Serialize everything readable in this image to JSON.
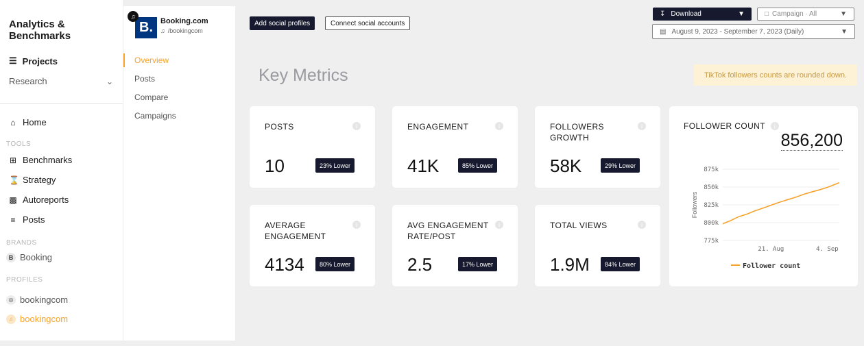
{
  "sidebar": {
    "app_title_line1": "Analytics &",
    "app_title_line2": "Benchmarks",
    "projects_label": "Projects",
    "research_label": "Research",
    "home_label": "Home",
    "tools_label": "TOOLS",
    "tools": [
      {
        "label": "Benchmarks",
        "icon": "grid-icon"
      },
      {
        "label": "Strategy",
        "icon": "hourglass-icon"
      },
      {
        "label": "Autoreports",
        "icon": "bar-chart-icon"
      },
      {
        "label": "Posts",
        "icon": "list-icon"
      }
    ],
    "brands_label": "BRANDS",
    "brands": [
      {
        "label": "Booking",
        "badge": "B"
      }
    ],
    "profiles_label": "PROFILES",
    "profiles": [
      {
        "label": "bookingcom",
        "icon": "instagram-icon"
      },
      {
        "label": "bookingcom",
        "icon": "tiktok-icon",
        "active": true
      }
    ]
  },
  "subpanel": {
    "profile_name": "Booking.com",
    "profile_handle": "/bookingcom",
    "logo_text": "B.",
    "nav": [
      "Overview",
      "Posts",
      "Compare",
      "Campaigns"
    ]
  },
  "toolbar": {
    "add_profiles": "Add social profiles",
    "connect_accounts": "Connect social accounts",
    "download": "Download",
    "campaign": "Campaign · All",
    "date_range": "August 9, 2023 - September 7, 2023 (Daily)"
  },
  "main": {
    "heading": "Key Metrics",
    "notice": "TikTok followers counts are rounded down."
  },
  "metrics": [
    {
      "title_line1": "POSTS",
      "title_line2": "",
      "value": "10",
      "badge": "23% Lower"
    },
    {
      "title_line1": "ENGAGEMENT",
      "title_line2": "",
      "value": "41K",
      "badge": "85% Lower"
    },
    {
      "title_line1": "FOLLOWERS",
      "title_line2": "GROWTH",
      "value": "58K",
      "badge": "29% Lower"
    },
    {
      "title_line1": "AVERAGE",
      "title_line2": "ENGAGEMENT",
      "value": "4134",
      "badge": "80% Lower"
    },
    {
      "title_line1": "AVG ENGAGEMENT",
      "title_line2": "RATE/POST",
      "value": "2.5",
      "badge": "17% Lower"
    },
    {
      "title_line1": "TOTAL VIEWS",
      "title_line2": "",
      "value": "1.9M",
      "badge": "84% Lower"
    }
  ],
  "follower_card": {
    "title": "FOLLOWER COUNT",
    "value": "856,200"
  },
  "chart_data": {
    "type": "line",
    "title": "",
    "xlabel": "",
    "ylabel": "Followers",
    "ylim": [
      775000,
      875000
    ],
    "yticks": [
      775000,
      800000,
      825000,
      850000,
      875000
    ],
    "ytick_labels": [
      "775k",
      "800k",
      "825k",
      "850k",
      "875k"
    ],
    "xtick_labels": [
      "21. Aug",
      "4. Sep"
    ],
    "legend": "bottom",
    "line_color": "#f5a32d",
    "series": [
      {
        "name": "Follower count",
        "x": [
          "2023-08-09",
          "2023-08-11",
          "2023-08-13",
          "2023-08-15",
          "2023-08-17",
          "2023-08-19",
          "2023-08-21",
          "2023-08-23",
          "2023-08-25",
          "2023-08-27",
          "2023-08-29",
          "2023-08-31",
          "2023-09-02",
          "2023-09-04",
          "2023-09-07"
        ],
        "values": [
          798500,
          803000,
          808500,
          812000,
          816500,
          820500,
          824500,
          828500,
          832000,
          835500,
          839500,
          843000,
          846000,
          849500,
          856200
        ]
      }
    ]
  }
}
